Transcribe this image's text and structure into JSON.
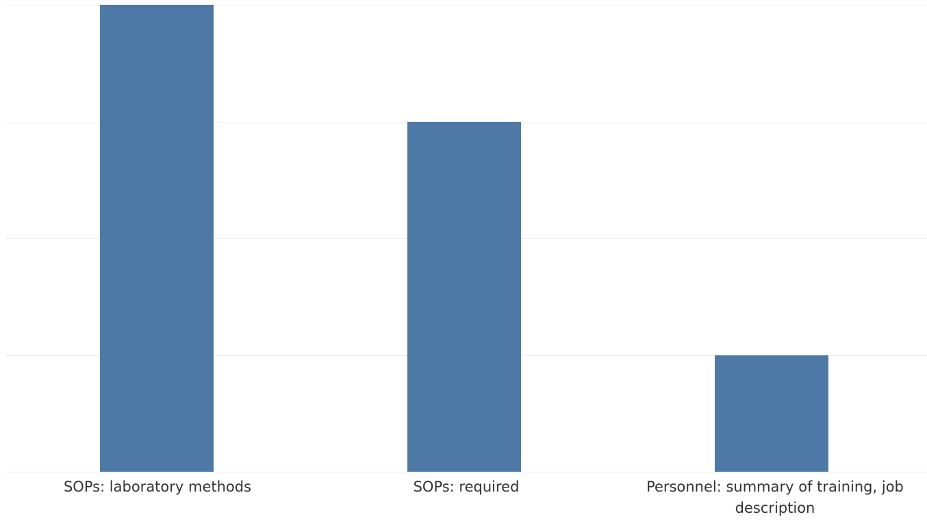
{
  "chart_data": {
    "type": "bar",
    "categories": [
      "SOPs: laboratory methods",
      "SOPs: required",
      "Personnel: summary of training, job description"
    ],
    "values": [
      4,
      3,
      1
    ],
    "ylim": [
      0,
      4
    ],
    "grid": true,
    "colors": {
      "bar": "#4e79a7",
      "gridline": "#eeeeee",
      "axis": "#e6e6e6",
      "label": "#333333"
    }
  }
}
